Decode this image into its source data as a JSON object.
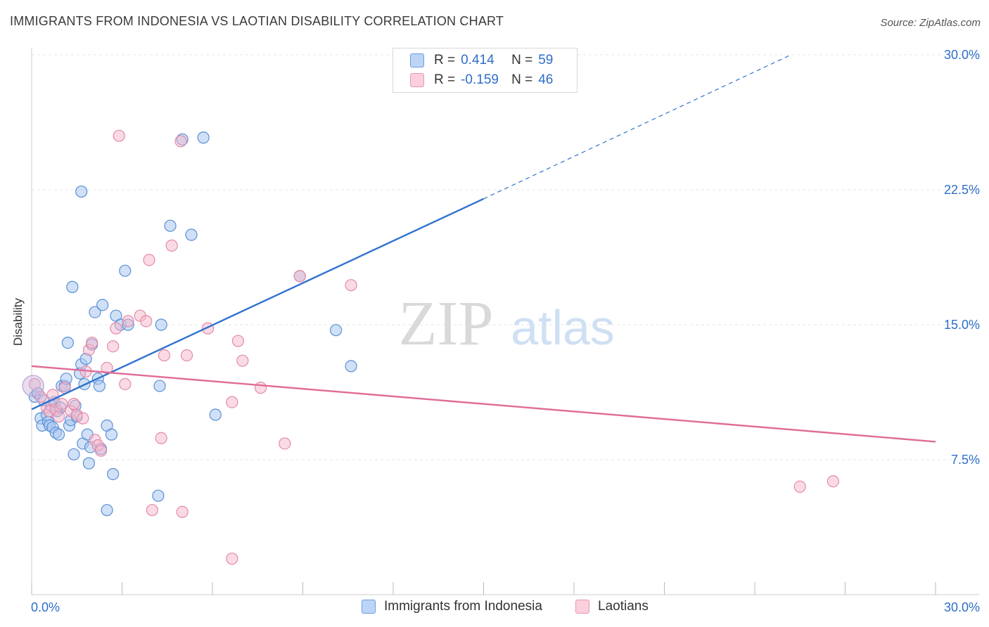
{
  "title": "IMMIGRANTS FROM INDONESIA VS LAOTIAN DISABILITY CORRELATION CHART",
  "source": "Source: ZipAtlas.com",
  "watermark": {
    "part1": "ZIP",
    "part2": "atlas"
  },
  "legend": {
    "rows": [
      {
        "r_label": "R =",
        "r_value": "0.414",
        "n_label": "N =",
        "n_value": "59"
      },
      {
        "r_label": "R =",
        "r_value": "-0.159",
        "n_label": "N =",
        "n_value": "46"
      }
    ]
  },
  "colors": {
    "blue_fill": "#a9c8f0",
    "blue_stroke": "#5b8fd6",
    "blue_line": "#2f72cf",
    "pink_fill": "#f5b7cb",
    "pink_stroke": "#e48aa8",
    "pink_line": "#e06c98",
    "accent_text": "#2f6fc9",
    "grid": "#e4e4e4"
  },
  "chart_data": {
    "type": "scatter",
    "title": "IMMIGRANTS FROM INDONESIA VS LAOTIAN DISABILITY CORRELATION CHART",
    "xlabel": "",
    "ylabel": "Disability",
    "xlim": [
      0,
      30
    ],
    "ylim": [
      0,
      30
    ],
    "x_tick_labels": [
      "0.0%",
      "30.0%"
    ],
    "y_ticks": [
      7.5,
      15.0,
      22.5,
      30.0
    ],
    "y_tick_labels": [
      "7.5%",
      "15.0%",
      "22.5%",
      "30.0%"
    ],
    "grid": true,
    "legend_position": "top-center",
    "series": [
      {
        "name": "Immigrants from Indonesia",
        "color": "blue",
        "trend": {
          "x": [
            0,
            15.0
          ],
          "y": [
            10.3,
            22.0
          ],
          "dashed_extension": {
            "x": [
              15.0,
              25.2
            ],
            "y": [
              22.0,
              30.0
            ]
          }
        },
        "points": [
          [
            0.1,
            11.0
          ],
          [
            0.2,
            11.2
          ],
          [
            0.3,
            9.8
          ],
          [
            0.35,
            9.4
          ],
          [
            0.4,
            10.8
          ],
          [
            0.5,
            10.0
          ],
          [
            0.55,
            9.6
          ],
          [
            0.6,
            9.4
          ],
          [
            0.65,
            10.5
          ],
          [
            0.7,
            9.3
          ],
          [
            0.75,
            10.7
          ],
          [
            0.8,
            9.0
          ],
          [
            0.85,
            10.2
          ],
          [
            0.9,
            8.9
          ],
          [
            0.95,
            10.4
          ],
          [
            1.0,
            11.6
          ],
          [
            1.1,
            11.6
          ],
          [
            1.15,
            12.0
          ],
          [
            1.2,
            14.0
          ],
          [
            1.25,
            9.4
          ],
          [
            1.3,
            9.7
          ],
          [
            1.35,
            17.1
          ],
          [
            1.4,
            7.8
          ],
          [
            1.45,
            10.5
          ],
          [
            1.5,
            9.9
          ],
          [
            1.6,
            12.3
          ],
          [
            1.65,
            12.8
          ],
          [
            1.7,
            8.4
          ],
          [
            1.75,
            11.7
          ],
          [
            1.8,
            13.1
          ],
          [
            1.85,
            8.9
          ],
          [
            1.9,
            7.3
          ],
          [
            1.95,
            8.2
          ],
          [
            2.0,
            13.9
          ],
          [
            2.1,
            15.7
          ],
          [
            2.2,
            12.0
          ],
          [
            2.25,
            11.6
          ],
          [
            2.3,
            8.1
          ],
          [
            2.35,
            16.1
          ],
          [
            2.5,
            9.4
          ],
          [
            2.65,
            8.9
          ],
          [
            2.8,
            15.5
          ],
          [
            2.95,
            15.0
          ],
          [
            3.1,
            18.0
          ],
          [
            3.2,
            15.0
          ],
          [
            1.65,
            22.4
          ],
          [
            4.25,
            11.6
          ],
          [
            4.3,
            15.0
          ],
          [
            4.6,
            20.5
          ],
          [
            5.3,
            20.0
          ],
          [
            5.0,
            25.3
          ],
          [
            5.7,
            25.4
          ],
          [
            6.1,
            10.0
          ],
          [
            8.9,
            17.7
          ],
          [
            10.1,
            14.7
          ],
          [
            10.6,
            12.7
          ],
          [
            2.7,
            6.7
          ],
          [
            4.2,
            5.5
          ],
          [
            2.5,
            4.7
          ]
        ]
      },
      {
        "name": "Laotians",
        "color": "pink",
        "trend": {
          "x": [
            0,
            30
          ],
          "y": [
            12.7,
            8.5
          ]
        },
        "points": [
          [
            0.1,
            11.7
          ],
          [
            0.3,
            11.0
          ],
          [
            0.5,
            10.4
          ],
          [
            0.6,
            10.2
          ],
          [
            0.7,
            11.1
          ],
          [
            0.8,
            10.3
          ],
          [
            0.9,
            9.9
          ],
          [
            1.0,
            10.6
          ],
          [
            1.1,
            11.5
          ],
          [
            1.3,
            10.2
          ],
          [
            1.4,
            10.6
          ],
          [
            1.5,
            10.0
          ],
          [
            1.7,
            9.8
          ],
          [
            1.8,
            12.4
          ],
          [
            1.9,
            13.6
          ],
          [
            2.0,
            14.0
          ],
          [
            2.1,
            8.6
          ],
          [
            2.2,
            8.3
          ],
          [
            2.3,
            8.0
          ],
          [
            2.5,
            12.6
          ],
          [
            2.7,
            13.8
          ],
          [
            2.8,
            14.8
          ],
          [
            3.1,
            11.7
          ],
          [
            3.2,
            15.2
          ],
          [
            3.6,
            15.5
          ],
          [
            3.8,
            15.2
          ],
          [
            3.9,
            18.6
          ],
          [
            4.3,
            8.7
          ],
          [
            4.4,
            13.3
          ],
          [
            4.65,
            19.4
          ],
          [
            4.95,
            25.2
          ],
          [
            5.15,
            13.3
          ],
          [
            5.85,
            14.8
          ],
          [
            6.65,
            10.7
          ],
          [
            6.85,
            14.1
          ],
          [
            7.0,
            13.0
          ],
          [
            7.6,
            11.5
          ],
          [
            8.4,
            8.4
          ],
          [
            8.9,
            17.7
          ],
          [
            10.6,
            17.2
          ],
          [
            2.9,
            25.5
          ],
          [
            4.0,
            4.7
          ],
          [
            5.0,
            4.6
          ],
          [
            6.65,
            2.0
          ],
          [
            25.5,
            6.0
          ],
          [
            26.6,
            6.3
          ]
        ]
      }
    ]
  },
  "bottom_legend": [
    {
      "label": "Immigrants from Indonesia"
    },
    {
      "label": "Laotians"
    }
  ]
}
